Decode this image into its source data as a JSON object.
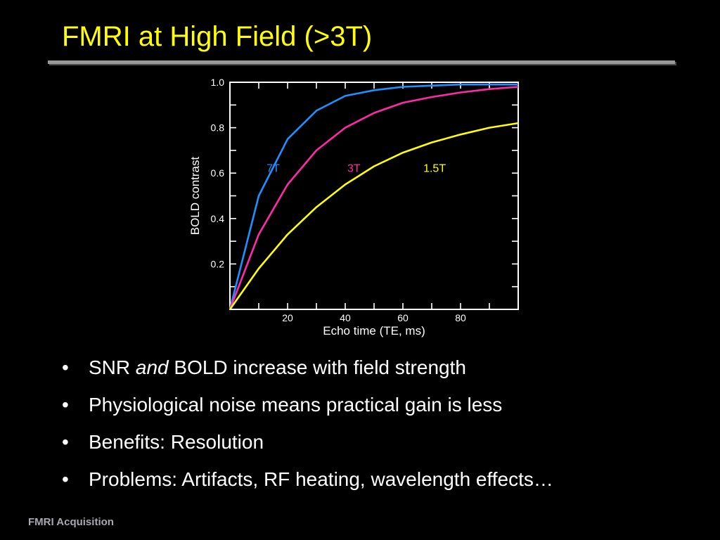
{
  "slide": {
    "title": "FMRI at High Field (>3T)",
    "footer": "FMRI Acquisition"
  },
  "bullets": [
    {
      "marker": "•",
      "pre": "SNR ",
      "em": "and",
      "post": " BOLD increase with field strength"
    },
    {
      "marker": "•",
      "text": "Physiological noise means practical gain is less"
    },
    {
      "marker": "•",
      "text": "Benefits: Resolution"
    },
    {
      "marker": "•",
      "text": "Problems: Artifacts, RF heating, wavelength effects…"
    }
  ],
  "chart_data": {
    "type": "line",
    "xlabel": "Echo time (TE, ms)",
    "ylabel": "BOLD contrast",
    "xlim": [
      0,
      100
    ],
    "ylim": [
      0,
      1.0
    ],
    "xticks": [
      20,
      40,
      60,
      80
    ],
    "yticks": [
      0.2,
      0.4,
      0.6,
      0.8,
      1.0
    ],
    "ytick_labels": [
      "0.2",
      "0.4",
      "0.6",
      "0.8",
      "1.0"
    ],
    "grid": false,
    "x": [
      0,
      10,
      20,
      30,
      40,
      50,
      60,
      70,
      80,
      90,
      100
    ],
    "series": [
      {
        "name": "7T",
        "color": "#1e90ff",
        "label_at": [
          15,
          0.62
        ],
        "values": [
          0.0,
          0.5,
          0.75,
          0.875,
          0.94,
          0.965,
          0.98,
          0.985,
          0.99,
          0.99,
          0.99
        ]
      },
      {
        "name": "3T",
        "color": "#ff2aa8",
        "label_at": [
          43,
          0.62
        ],
        "values": [
          0.0,
          0.33,
          0.55,
          0.7,
          0.8,
          0.865,
          0.91,
          0.935,
          0.955,
          0.97,
          0.98
        ]
      },
      {
        "name": "1.5T",
        "color": "#ffff00",
        "label_at": [
          71,
          0.62
        ],
        "values": [
          0.0,
          0.18,
          0.33,
          0.45,
          0.55,
          0.63,
          0.69,
          0.735,
          0.77,
          0.8,
          0.82
        ]
      }
    ]
  }
}
